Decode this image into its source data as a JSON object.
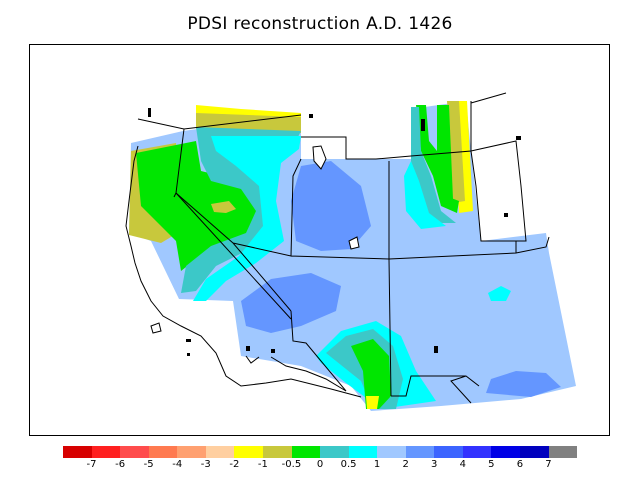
{
  "title": "PDSI reconstruction A.D. 1426",
  "legend": {
    "colors": [
      "#d70000",
      "#ff2020",
      "#ff4c4c",
      "#ff7a50",
      "#ffa070",
      "#ffcfa0",
      "#ffff00",
      "#c8c83c",
      "#00e600",
      "#3cc8c8",
      "#00ffff",
      "#a0c8ff",
      "#6496ff",
      "#3c64ff",
      "#3232ff",
      "#0000e6",
      "#0000be",
      "#808080"
    ],
    "labels": [
      "-7",
      "-6",
      "-5",
      "-4",
      "-3",
      "-2",
      "-1",
      "-0.5",
      "0",
      "0.5",
      "1",
      "2",
      "3",
      "4",
      "5",
      "6",
      "7"
    ]
  },
  "palette": {
    "yellow": "#ffff00",
    "olive": "#c8c83c",
    "green": "#00e600",
    "teal": "#3cc8c8",
    "cyan": "#00ffff",
    "light_blue": "#a0c8ff",
    "mid_blue": "#6496ff"
  }
}
